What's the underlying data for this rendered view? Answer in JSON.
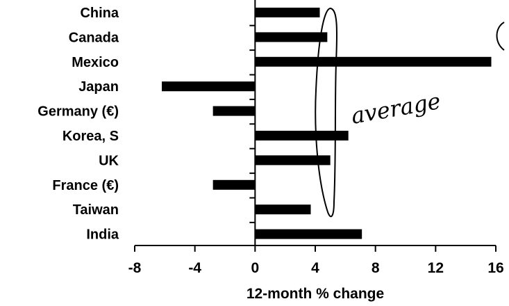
{
  "chart_data": {
    "type": "bar",
    "orientation": "horizontal",
    "categories": [
      "China",
      "Canada",
      "Mexico",
      "Japan",
      "Germany (€)",
      "Korea, S",
      "UK",
      "France (€)",
      "Taiwan",
      "India"
    ],
    "values": [
      4.3,
      4.8,
      15.7,
      -6.2,
      -2.8,
      6.2,
      5.0,
      -2.8,
      3.7,
      7.1
    ],
    "xlabel": "12-month % change",
    "ylabel": "",
    "title": "",
    "xlim": [
      -8,
      16
    ],
    "xticks": [
      -8,
      -4,
      0,
      4,
      8,
      12,
      16
    ],
    "grid": false,
    "annotations": [
      {
        "text": "average",
        "style": "handwritten",
        "note": "loop drawn around bar ends near 4–5"
      }
    ]
  }
}
